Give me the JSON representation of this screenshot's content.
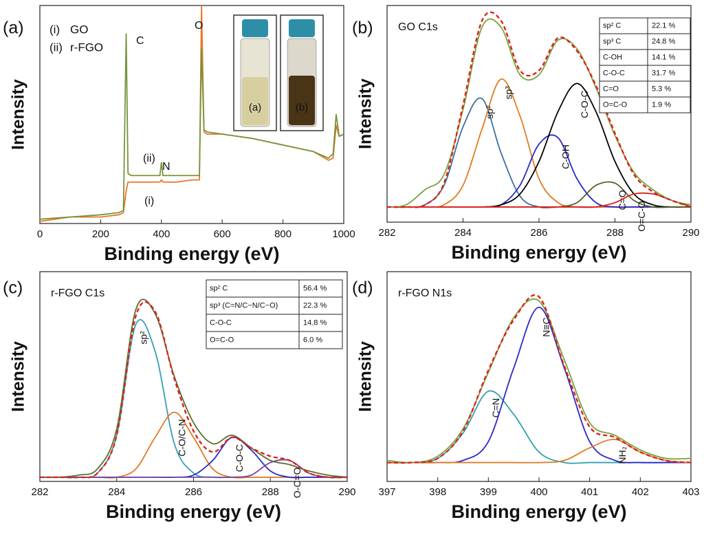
{
  "chart_data": [
    {
      "type": "line",
      "panel_label": "(a)",
      "xlabel": "Binding energy (eV)",
      "ylabel": "Intensity",
      "x": [
        0,
        100,
        200,
        260,
        275,
        284,
        290,
        300,
        350,
        395,
        400,
        405,
        450,
        500,
        525,
        532,
        540,
        550,
        600,
        700,
        800,
        900,
        950,
        965,
        975,
        985,
        1000
      ],
      "xlim": [
        0,
        1000
      ],
      "xticks": [
        0,
        200,
        400,
        600,
        800,
        1000
      ],
      "ylim": [
        0,
        100
      ],
      "series": [
        {
          "name": "GO",
          "legend_key": "(i)",
          "color": "#e87722",
          "values": [
            1,
            3,
            3,
            4,
            5,
            15,
            19,
            19,
            19,
            19,
            20,
            19,
            19,
            20,
            20,
            100,
            42,
            41,
            41,
            39,
            36,
            33,
            29,
            30,
            45,
            40,
            41
          ]
        },
        {
          "name": "r-FGO",
          "legend_key": "(ii)",
          "color": "#77933c",
          "values": [
            2,
            3,
            4,
            5,
            6,
            87,
            23,
            22,
            22,
            22,
            28,
            22,
            22,
            22,
            22,
            80,
            43,
            42,
            41,
            39,
            36,
            33,
            30,
            32,
            50,
            40,
            41
          ]
        }
      ],
      "annotations": [
        "C",
        "O",
        "N",
        "(ii)",
        "(i)"
      ],
      "inset_labels": [
        "(a)",
        "(b)"
      ]
    },
    {
      "type": "line",
      "smooth": true,
      "panel_label": "(b)",
      "title": "GO C1s",
      "xlabel": "Binding energy (eV)",
      "ylabel": "Intensity",
      "x": [
        282,
        282.5,
        283,
        283.5,
        284,
        284.5,
        285,
        285.5,
        286,
        286.5,
        287,
        287.5,
        288,
        288.5,
        289,
        289.5,
        290
      ],
      "xlim": [
        282,
        290
      ],
      "xticks": [
        282,
        284,
        286,
        288,
        290
      ],
      "ylim": [
        0,
        100
      ],
      "series": [
        {
          "name": "sp²",
          "color": "#3d6e9e",
          "values": [
            7,
            7,
            8,
            17,
            44,
            57,
            32,
            12,
            7,
            7,
            7,
            7,
            7,
            7,
            7,
            7,
            7
          ]
        },
        {
          "name": "sp³",
          "color": "#e07b20",
          "values": [
            7,
            7,
            7,
            8,
            17,
            43,
            66,
            49,
            20,
            9,
            7,
            7,
            7,
            7,
            7,
            7,
            7
          ]
        },
        {
          "name": "C-OH",
          "color": "#2828cc",
          "values": [
            7,
            7,
            7,
            7,
            7,
            7,
            8,
            17,
            36,
            39,
            20,
            9,
            7,
            7,
            7,
            7,
            7
          ]
        },
        {
          "name": "C-O-C",
          "color": "#000000",
          "values": [
            7,
            7,
            7,
            7,
            7,
            7,
            8,
            13,
            28,
            51,
            64,
            51,
            28,
            13,
            8,
            7,
            7
          ]
        },
        {
          "name": "C=O",
          "color": "#4f6228",
          "values": [
            7,
            7,
            7,
            7,
            7,
            7,
            7,
            7,
            7,
            7,
            9,
            17,
            18,
            10,
            7,
            7,
            7
          ]
        },
        {
          "name": "O=C-O",
          "color": "#e02020",
          "values": [
            7,
            7,
            7,
            7,
            7,
            7,
            7,
            7,
            7,
            7,
            7,
            7,
            9,
            13,
            13,
            10,
            7
          ]
        },
        {
          "color": "#77a33c",
          "values": [
            7,
            8,
            15,
            22,
            52,
            90,
            90,
            68,
            68,
            84,
            80,
            62,
            40,
            23,
            15,
            10,
            8
          ]
        },
        {
          "color": "#e0201b",
          "dashed": true,
          "values": [
            7,
            7,
            8,
            18,
            54,
            93,
            93,
            70,
            70,
            85,
            79,
            63,
            41,
            22,
            14,
            10,
            7
          ]
        }
      ],
      "table": {
        "rows": [
          [
            "sp² C",
            "22.1 %"
          ],
          [
            "sp³ C",
            "24.8 %"
          ],
          [
            "C-OH",
            "14.1 %"
          ],
          [
            "C-O-C",
            "31.7 %"
          ],
          [
            "C=O",
            "5.3 %"
          ],
          [
            "O=C-O",
            "1.9 %"
          ]
        ]
      }
    },
    {
      "type": "line",
      "smooth": true,
      "panel_label": "(c)",
      "title": "r-FGO C1s",
      "xlabel": "Binding energy (eV)",
      "ylabel": "Intensity",
      "x": [
        282,
        282.5,
        283,
        283.5,
        284,
        284.5,
        285,
        285.5,
        286,
        286.5,
        287,
        287.5,
        288,
        288.5,
        289,
        289.5,
        290
      ],
      "xlim": [
        282,
        290
      ],
      "xticks": [
        282,
        284,
        286,
        288,
        290
      ],
      "ylim": [
        0,
        100
      ],
      "series": [
        {
          "name": "sp²",
          "color": "#31a0b0",
          "values": [
            2,
            2,
            2,
            4,
            22,
            75,
            62,
            18,
            4,
            2,
            2,
            2,
            2,
            2,
            2,
            2,
            2
          ]
        },
        {
          "name": "C-O/C-N",
          "color": "#e07b20",
          "values": [
            2,
            2,
            2,
            2,
            2,
            6,
            21,
            33,
            21,
            6,
            2,
            2,
            2,
            2,
            2,
            2,
            2
          ]
        },
        {
          "name": "C-O-C",
          "color": "#2828cc",
          "values": [
            2,
            2,
            2,
            2,
            2,
            2,
            2,
            2,
            3,
            10,
            21,
            15,
            5,
            2,
            2,
            2,
            2
          ]
        },
        {
          "name": "O-C=O",
          "color": "#7a3fa0",
          "values": [
            2,
            2,
            2,
            2,
            2,
            2,
            2,
            2,
            2,
            2,
            2,
            3,
            9,
            10,
            4,
            2,
            2
          ]
        },
        {
          "color": "#5a6e2a",
          "values": [
            2,
            2,
            3,
            6,
            25,
            82,
            80,
            50,
            28,
            18,
            22,
            16,
            10,
            8,
            5,
            3,
            2
          ]
        },
        {
          "color": "#e0201b",
          "dashed": true,
          "values": [
            2,
            2,
            2,
            4,
            22,
            79,
            81,
            49,
            24,
            14,
            21,
            16,
            12,
            10,
            4,
            2,
            2
          ]
        }
      ],
      "table": {
        "rows": [
          [
            "sp² C",
            "56.4 %"
          ],
          [
            "sp³ (C=N/C−N/C−O)",
            "22.3 %"
          ],
          [
            "C-O-C",
            "14.8 %"
          ],
          [
            "O=C-O",
            "6.0 %"
          ]
        ]
      }
    },
    {
      "type": "line",
      "smooth": true,
      "panel_label": "(d)",
      "title": "r-FGO N1s",
      "xlabel": "Binding energy (eV)",
      "ylabel": "Intensity",
      "x": [
        397,
        397.5,
        398,
        398.5,
        399,
        399.5,
        400,
        400.5,
        401,
        401.5,
        402,
        402.5,
        403
      ],
      "xlim": [
        397,
        403
      ],
      "xticks": [
        397,
        398,
        399,
        400,
        401,
        402,
        403
      ],
      "ylim": [
        0,
        100
      ],
      "series": [
        {
          "name": "C=N",
          "color": "#31a0b0",
          "values": [
            9,
            9,
            11,
            23,
            43,
            32,
            14,
            9,
            9,
            9,
            9,
            9,
            9
          ]
        },
        {
          "name": "N≡C-",
          "color": "#2828cc",
          "values": [
            9,
            9,
            9,
            10,
            19,
            54,
            83,
            54,
            19,
            10,
            9,
            9,
            9
          ]
        },
        {
          "name": "NH₂",
          "color": "#e07b20",
          "values": [
            9,
            9,
            9,
            9,
            9,
            9,
            9,
            10,
            16,
            20,
            14,
            10,
            9
          ]
        },
        {
          "color": "#77a33c",
          "values": [
            10,
            9,
            12,
            25,
            52,
            78,
            86,
            58,
            28,
            22,
            15,
            11,
            11
          ]
        },
        {
          "color": "#e0201b",
          "dashed": true,
          "values": [
            9,
            9,
            11,
            24,
            53,
            77,
            88,
            55,
            26,
            21,
            14,
            10,
            9
          ]
        }
      ]
    }
  ]
}
